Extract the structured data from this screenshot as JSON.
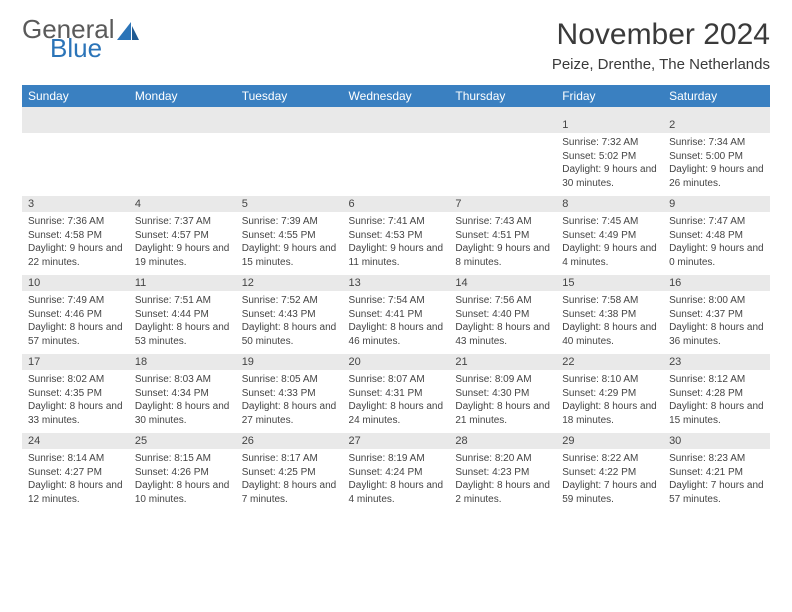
{
  "brand": {
    "line1": "General",
    "line2": "Blue"
  },
  "title": "November 2024",
  "location": "Peize, Drenthe, The Netherlands",
  "colors": {
    "header_bg": "#3a80c1",
    "header_text": "#ffffff",
    "day_bg": "#e9e9e9",
    "rule": "#2b74b8",
    "text": "#444444",
    "logo_gray": "#5a5a5a",
    "logo_blue": "#2b74b8"
  },
  "day_headers": [
    "Sunday",
    "Monday",
    "Tuesday",
    "Wednesday",
    "Thursday",
    "Friday",
    "Saturday"
  ],
  "weeks": [
    [
      null,
      null,
      null,
      null,
      null,
      {
        "n": "1",
        "sunrise": "7:32 AM",
        "sunset": "5:02 PM",
        "daylight": "9 hours and 30 minutes."
      },
      {
        "n": "2",
        "sunrise": "7:34 AM",
        "sunset": "5:00 PM",
        "daylight": "9 hours and 26 minutes."
      }
    ],
    [
      {
        "n": "3",
        "sunrise": "7:36 AM",
        "sunset": "4:58 PM",
        "daylight": "9 hours and 22 minutes."
      },
      {
        "n": "4",
        "sunrise": "7:37 AM",
        "sunset": "4:57 PM",
        "daylight": "9 hours and 19 minutes."
      },
      {
        "n": "5",
        "sunrise": "7:39 AM",
        "sunset": "4:55 PM",
        "daylight": "9 hours and 15 minutes."
      },
      {
        "n": "6",
        "sunrise": "7:41 AM",
        "sunset": "4:53 PM",
        "daylight": "9 hours and 11 minutes."
      },
      {
        "n": "7",
        "sunrise": "7:43 AM",
        "sunset": "4:51 PM",
        "daylight": "9 hours and 8 minutes."
      },
      {
        "n": "8",
        "sunrise": "7:45 AM",
        "sunset": "4:49 PM",
        "daylight": "9 hours and 4 minutes."
      },
      {
        "n": "9",
        "sunrise": "7:47 AM",
        "sunset": "4:48 PM",
        "daylight": "9 hours and 0 minutes."
      }
    ],
    [
      {
        "n": "10",
        "sunrise": "7:49 AM",
        "sunset": "4:46 PM",
        "daylight": "8 hours and 57 minutes."
      },
      {
        "n": "11",
        "sunrise": "7:51 AM",
        "sunset": "4:44 PM",
        "daylight": "8 hours and 53 minutes."
      },
      {
        "n": "12",
        "sunrise": "7:52 AM",
        "sunset": "4:43 PM",
        "daylight": "8 hours and 50 minutes."
      },
      {
        "n": "13",
        "sunrise": "7:54 AM",
        "sunset": "4:41 PM",
        "daylight": "8 hours and 46 minutes."
      },
      {
        "n": "14",
        "sunrise": "7:56 AM",
        "sunset": "4:40 PM",
        "daylight": "8 hours and 43 minutes."
      },
      {
        "n": "15",
        "sunrise": "7:58 AM",
        "sunset": "4:38 PM",
        "daylight": "8 hours and 40 minutes."
      },
      {
        "n": "16",
        "sunrise": "8:00 AM",
        "sunset": "4:37 PM",
        "daylight": "8 hours and 36 minutes."
      }
    ],
    [
      {
        "n": "17",
        "sunrise": "8:02 AM",
        "sunset": "4:35 PM",
        "daylight": "8 hours and 33 minutes."
      },
      {
        "n": "18",
        "sunrise": "8:03 AM",
        "sunset": "4:34 PM",
        "daylight": "8 hours and 30 minutes."
      },
      {
        "n": "19",
        "sunrise": "8:05 AM",
        "sunset": "4:33 PM",
        "daylight": "8 hours and 27 minutes."
      },
      {
        "n": "20",
        "sunrise": "8:07 AM",
        "sunset": "4:31 PM",
        "daylight": "8 hours and 24 minutes."
      },
      {
        "n": "21",
        "sunrise": "8:09 AM",
        "sunset": "4:30 PM",
        "daylight": "8 hours and 21 minutes."
      },
      {
        "n": "22",
        "sunrise": "8:10 AM",
        "sunset": "4:29 PM",
        "daylight": "8 hours and 18 minutes."
      },
      {
        "n": "23",
        "sunrise": "8:12 AM",
        "sunset": "4:28 PM",
        "daylight": "8 hours and 15 minutes."
      }
    ],
    [
      {
        "n": "24",
        "sunrise": "8:14 AM",
        "sunset": "4:27 PM",
        "daylight": "8 hours and 12 minutes."
      },
      {
        "n": "25",
        "sunrise": "8:15 AM",
        "sunset": "4:26 PM",
        "daylight": "8 hours and 10 minutes."
      },
      {
        "n": "26",
        "sunrise": "8:17 AM",
        "sunset": "4:25 PM",
        "daylight": "8 hours and 7 minutes."
      },
      {
        "n": "27",
        "sunrise": "8:19 AM",
        "sunset": "4:24 PM",
        "daylight": "8 hours and 4 minutes."
      },
      {
        "n": "28",
        "sunrise": "8:20 AM",
        "sunset": "4:23 PM",
        "daylight": "8 hours and 2 minutes."
      },
      {
        "n": "29",
        "sunrise": "8:22 AM",
        "sunset": "4:22 PM",
        "daylight": "7 hours and 59 minutes."
      },
      {
        "n": "30",
        "sunrise": "8:23 AM",
        "sunset": "4:21 PM",
        "daylight": "7 hours and 57 minutes."
      }
    ]
  ],
  "labels": {
    "sunrise": "Sunrise: ",
    "sunset": "Sunset: ",
    "daylight": "Daylight: "
  }
}
